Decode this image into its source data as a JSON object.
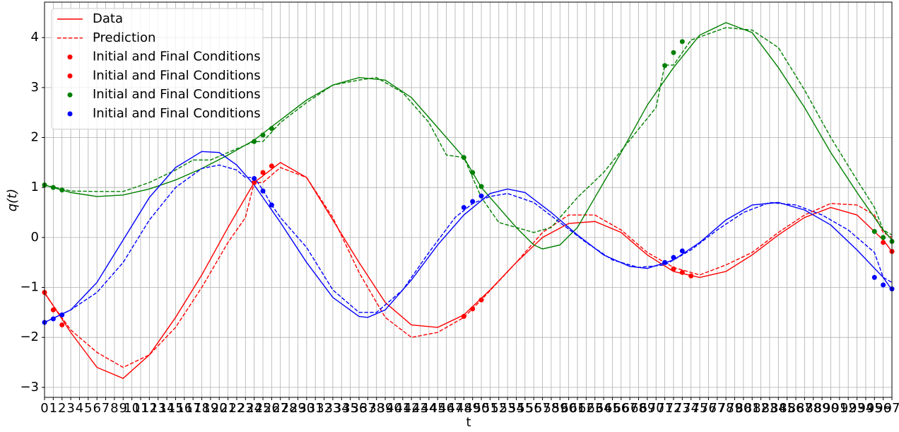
{
  "chart_data": {
    "type": "line",
    "xlabel": "t",
    "ylabel": "q(t)",
    "xlim": [
      0,
      97
    ],
    "ylim": [
      -3.2,
      4.71
    ],
    "xticks": [
      0,
      1,
      2,
      3,
      4,
      5,
      6,
      7,
      8,
      9,
      10,
      11,
      12,
      13,
      14,
      15,
      16,
      17,
      18,
      19,
      20,
      21,
      22,
      23,
      24,
      25,
      26,
      27,
      28,
      29,
      30,
      31,
      32,
      33,
      34,
      35,
      36,
      37,
      38,
      39,
      40,
      41,
      42,
      43,
      44,
      45,
      46,
      47,
      48,
      49,
      50,
      51,
      52,
      53,
      54,
      55,
      56,
      57,
      58,
      59,
      60,
      61,
      62,
      63,
      64,
      65,
      66,
      67,
      68,
      69,
      70,
      71,
      72,
      73,
      74,
      75,
      76,
      77,
      78,
      79,
      80,
      81,
      82,
      83,
      84,
      85,
      86,
      87,
      88,
      89,
      90,
      91,
      92,
      93,
      94,
      95,
      96,
      97
    ],
    "yticks": [
      {
        "value": -3,
        "label": "−3"
      },
      {
        "value": -2,
        "label": "−2"
      },
      {
        "value": -1,
        "label": "−1"
      },
      0,
      1,
      2,
      3,
      4
    ],
    "grid": true,
    "legend": "upper left",
    "series": [
      {
        "name": "Data",
        "color": "#ff0000",
        "style": "solid",
        "x": [
          0,
          3,
          6,
          9,
          12,
          15,
          18,
          21,
          24,
          27,
          30,
          33,
          36,
          39,
          42,
          45,
          48,
          51,
          54,
          57,
          60,
          63,
          66,
          69,
          72,
          75,
          78,
          81,
          84,
          87,
          90,
          93,
          96,
          97
        ],
        "values": [
          -1.1,
          -1.9,
          -2.6,
          -2.82,
          -2.35,
          -1.6,
          -0.75,
          0.2,
          1.1,
          1.5,
          1.2,
          0.35,
          -0.5,
          -1.3,
          -1.75,
          -1.8,
          -1.55,
          -1.05,
          -0.5,
          0.0,
          0.28,
          0.32,
          0.1,
          -0.35,
          -0.68,
          -0.8,
          -0.68,
          -0.35,
          0.05,
          0.4,
          0.6,
          0.45,
          -0.05,
          -0.28
        ]
      },
      {
        "name": "Prediction",
        "color": "#ff0000",
        "style": "dashed",
        "x": [
          0,
          3,
          6,
          9,
          12,
          15,
          18,
          21,
          23,
          24,
          25,
          27,
          30,
          33,
          36,
          39,
          42,
          45,
          48,
          50,
          54,
          57,
          60,
          63,
          66,
          69,
          72,
          75,
          78,
          81,
          84,
          87,
          90,
          93,
          95,
          96,
          97
        ],
        "values": [
          -1.12,
          -1.85,
          -2.3,
          -2.6,
          -2.35,
          -1.8,
          -1.0,
          -0.1,
          0.4,
          1.1,
          1.1,
          1.4,
          1.2,
          0.4,
          -0.7,
          -1.6,
          -2.0,
          -1.9,
          -1.6,
          -1.25,
          -0.5,
          0.1,
          0.45,
          0.45,
          0.15,
          -0.3,
          -0.6,
          -0.75,
          -0.55,
          -0.3,
          0.1,
          0.45,
          0.68,
          0.65,
          0.45,
          0.1,
          0.0
        ]
      },
      {
        "color": "#008000",
        "style": "solid",
        "x": [
          0,
          3,
          6,
          9,
          12,
          15,
          18,
          21,
          24,
          27,
          30,
          33,
          36,
          39,
          42,
          45,
          48,
          50,
          52,
          54,
          56,
          57,
          59,
          61,
          63,
          66,
          69,
          72,
          75,
          78,
          81,
          84,
          87,
          90,
          93,
          96,
          97
        ],
        "values": [
          1.05,
          0.9,
          0.82,
          0.85,
          0.97,
          1.15,
          1.38,
          1.65,
          1.95,
          2.35,
          2.75,
          3.05,
          3.2,
          3.15,
          2.8,
          2.2,
          1.6,
          1.0,
          0.6,
          0.2,
          -0.15,
          -0.23,
          -0.15,
          0.2,
          0.8,
          1.7,
          2.65,
          3.4,
          4.05,
          4.3,
          4.1,
          3.4,
          2.6,
          1.7,
          0.9,
          0.15,
          -0.05
        ]
      },
      {
        "color": "#008000",
        "style": "dashed",
        "x": [
          0,
          3,
          6,
          9,
          12,
          15,
          17,
          19,
          21,
          24,
          25,
          27,
          30,
          33,
          36,
          38,
          41,
          44,
          46,
          48,
          50,
          52,
          54,
          56,
          58,
          61,
          64,
          67,
          70,
          71,
          72,
          74,
          78,
          81,
          84,
          87,
          90,
          93,
          95,
          96,
          97
        ],
        "values": [
          1.05,
          0.93,
          0.92,
          0.92,
          1.1,
          1.35,
          1.55,
          1.55,
          1.7,
          1.92,
          1.92,
          2.3,
          2.7,
          3.05,
          3.15,
          3.2,
          2.9,
          2.3,
          1.65,
          1.6,
          0.8,
          0.3,
          0.2,
          0.1,
          0.2,
          0.8,
          1.3,
          1.95,
          2.6,
          3.45,
          3.45,
          3.95,
          4.2,
          4.15,
          3.8,
          2.95,
          2.0,
          1.15,
          0.6,
          0.15,
          0.05
        ]
      },
      {
        "color": "#0000ff",
        "style": "solid",
        "x": [
          0,
          3,
          6,
          9,
          12,
          15,
          18,
          20,
          22,
          24,
          27,
          30,
          33,
          36,
          37,
          39,
          42,
          45,
          48,
          51,
          53,
          55,
          58,
          61,
          64,
          67,
          69,
          72,
          75,
          78,
          81,
          84,
          87,
          90,
          93,
          96,
          97
        ],
        "values": [
          -1.7,
          -1.45,
          -0.9,
          -0.05,
          0.8,
          1.4,
          1.72,
          1.7,
          1.45,
          1.05,
          0.3,
          -0.5,
          -1.2,
          -1.58,
          -1.6,
          -1.45,
          -0.85,
          -0.15,
          0.45,
          0.88,
          0.97,
          0.9,
          0.5,
          0.05,
          -0.35,
          -0.58,
          -0.62,
          -0.45,
          -0.1,
          0.35,
          0.65,
          0.7,
          0.55,
          0.25,
          -0.25,
          -0.8,
          -1.05
        ]
      },
      {
        "color": "#0000ff",
        "style": "dashed",
        "x": [
          0,
          3,
          6,
          9,
          12,
          15,
          18,
          20,
          22,
          23,
          24,
          25,
          26,
          27,
          30,
          33,
          36,
          38,
          41,
          44,
          47,
          49,
          51,
          53,
          56,
          59,
          62,
          65,
          68,
          71,
          74,
          77,
          80,
          83,
          86,
          89,
          92,
          95,
          96,
          97
        ],
        "values": [
          -1.7,
          -1.45,
          -1.1,
          -0.5,
          0.35,
          1.0,
          1.38,
          1.45,
          1.35,
          1.2,
          1.2,
          0.95,
          0.65,
          0.4,
          -0.2,
          -1.05,
          -1.5,
          -1.5,
          -1.05,
          -0.3,
          0.4,
          0.68,
          0.82,
          0.88,
          0.7,
          0.3,
          -0.1,
          -0.45,
          -0.6,
          -0.55,
          -0.25,
          0.15,
          0.5,
          0.7,
          0.65,
          0.45,
          0.15,
          -0.3,
          -0.8,
          -0.9
        ]
      }
    ],
    "scatter": [
      {
        "name": "Initial and Final Conditions",
        "color": "#ff0000",
        "x": [
          0,
          1,
          2,
          24,
          25,
          26
        ],
        "y": [
          -1.1,
          -1.45,
          -1.75,
          1.1,
          1.3,
          1.43
        ]
      },
      {
        "name": "Initial and Final Conditions",
        "color": "#ff0000",
        "x": [
          48,
          49,
          50,
          72,
          73,
          74,
          96,
          97
        ],
        "y": [
          -1.58,
          -1.43,
          -1.25,
          -0.63,
          -0.7,
          -0.77,
          -0.1,
          -0.28
        ]
      },
      {
        "name": "Initial and Final Conditions",
        "color": "#008000",
        "x": [
          0,
          1,
          2,
          24,
          25,
          26,
          48,
          49,
          50,
          71,
          72,
          73,
          95,
          96,
          97
        ],
        "y": [
          1.05,
          1.0,
          0.95,
          1.92,
          2.05,
          2.18,
          1.6,
          1.3,
          1.02,
          3.44,
          3.7,
          3.92,
          0.12,
          0.0,
          -0.08
        ]
      },
      {
        "name": "Initial and Final Conditions",
        "color": "#0000ff",
        "x": [
          0,
          1,
          2,
          24,
          25,
          26,
          48,
          49,
          50,
          71,
          72,
          73,
          95,
          96,
          97
        ],
        "y": [
          -1.7,
          -1.63,
          -1.55,
          1.18,
          0.93,
          0.65,
          0.6,
          0.72,
          0.83,
          -0.5,
          -0.4,
          -0.27,
          -0.8,
          -0.95,
          -1.03
        ]
      }
    ]
  }
}
